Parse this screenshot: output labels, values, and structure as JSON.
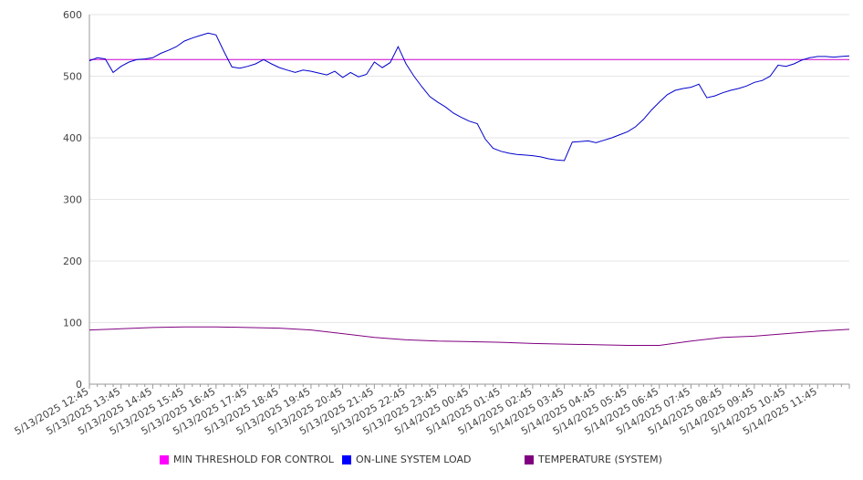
{
  "chart_data": {
    "type": "line",
    "ylim": [
      0,
      600
    ],
    "yticks": [
      0,
      100,
      200,
      300,
      400,
      500,
      600
    ],
    "xlabels": [
      "5/13/2025 12:45",
      "5/13/2025 13:45",
      "5/13/2025 14:45",
      "5/13/2025 15:45",
      "5/13/2025 16:45",
      "5/13/2025 17:45",
      "5/13/2025 18:45",
      "5/13/2025 19:45",
      "5/13/2025 20:45",
      "5/13/2025 21:45",
      "5/13/2025 22:45",
      "5/13/2025 23:45",
      "5/14/2025 00:45",
      "5/14/2025 01:45",
      "5/14/2025 02:45",
      "5/14/2025 03:45",
      "5/14/2025 04:45",
      "5/14/2025 05:45",
      "5/14/2025 06:45",
      "5/14/2025 07:45",
      "5/14/2025 08:45",
      "5/14/2025 09:45",
      "5/14/2025 10:45",
      "5/14/2025 11:45"
    ],
    "grid": true,
    "legend_position": "bottom",
    "series": [
      {
        "name": "MIN THRESHOLD FOR CONTROL",
        "color": "#cc00cc",
        "x": [
          "5/13/2025 12:45",
          "5/14/2025 12:45"
        ],
        "y": [
          527,
          527
        ]
      },
      {
        "name": "ON-LINE SYSTEM LOAD",
        "color": "#0000cc",
        "x": [
          "5/13/2025 12:45",
          "5/13/2025 13:00",
          "5/13/2025 13:15",
          "5/13/2025 13:30",
          "5/13/2025 13:45",
          "5/13/2025 14:00",
          "5/13/2025 14:15",
          "5/13/2025 14:30",
          "5/13/2025 14:45",
          "5/13/2025 15:00",
          "5/13/2025 15:15",
          "5/13/2025 15:30",
          "5/13/2025 15:45",
          "5/13/2025 16:00",
          "5/13/2025 16:15",
          "5/13/2025 16:30",
          "5/13/2025 16:45",
          "5/13/2025 17:00",
          "5/13/2025 17:15",
          "5/13/2025 17:30",
          "5/13/2025 17:45",
          "5/13/2025 18:00",
          "5/13/2025 18:15",
          "5/13/2025 18:30",
          "5/13/2025 18:45",
          "5/13/2025 19:00",
          "5/13/2025 19:15",
          "5/13/2025 19:30",
          "5/13/2025 19:45",
          "5/13/2025 20:00",
          "5/13/2025 20:15",
          "5/13/2025 20:30",
          "5/13/2025 20:45",
          "5/13/2025 21:00",
          "5/13/2025 21:15",
          "5/13/2025 21:30",
          "5/13/2025 21:45",
          "5/13/2025 22:00",
          "5/13/2025 22:15",
          "5/13/2025 22:30",
          "5/13/2025 22:45",
          "5/13/2025 23:00",
          "5/13/2025 23:15",
          "5/13/2025 23:30",
          "5/13/2025 23:45",
          "5/14/2025 00:00",
          "5/14/2025 00:15",
          "5/14/2025 00:30",
          "5/14/2025 00:45",
          "5/14/2025 01:00",
          "5/14/2025 01:15",
          "5/14/2025 01:30",
          "5/14/2025 01:45",
          "5/14/2025 02:00",
          "5/14/2025 02:15",
          "5/14/2025 02:30",
          "5/14/2025 02:45",
          "5/14/2025 03:00",
          "5/14/2025 03:15",
          "5/14/2025 03:30",
          "5/14/2025 03:45",
          "5/14/2025 04:00",
          "5/14/2025 04:15",
          "5/14/2025 04:30",
          "5/14/2025 04:45",
          "5/14/2025 05:00",
          "5/14/2025 05:15",
          "5/14/2025 05:30",
          "5/14/2025 05:45",
          "5/14/2025 06:00",
          "5/14/2025 06:15",
          "5/14/2025 06:30",
          "5/14/2025 06:45",
          "5/14/2025 07:00",
          "5/14/2025 07:15",
          "5/14/2025 07:30",
          "5/14/2025 07:45",
          "5/14/2025 08:00",
          "5/14/2025 08:15",
          "5/14/2025 08:30",
          "5/14/2025 08:45",
          "5/14/2025 09:00",
          "5/14/2025 09:15",
          "5/14/2025 09:30",
          "5/14/2025 09:45",
          "5/14/2025 10:00",
          "5/14/2025 10:15",
          "5/14/2025 10:30",
          "5/14/2025 10:45",
          "5/14/2025 11:00",
          "5/14/2025 11:15",
          "5/14/2025 11:30",
          "5/14/2025 11:45",
          "5/14/2025 12:00",
          "5/14/2025 12:15",
          "5/14/2025 12:30",
          "5/14/2025 12:45"
        ],
        "y": [
          525,
          530,
          528,
          506,
          516,
          523,
          527,
          528,
          530,
          537,
          542,
          548,
          557,
          562,
          566,
          570,
          567,
          540,
          515,
          513,
          516,
          520,
          527,
          520,
          514,
          510,
          506,
          510,
          508,
          505,
          502,
          508,
          498,
          506,
          499,
          503,
          523,
          514,
          522,
          548,
          520,
          500,
          483,
          467,
          458,
          450,
          440,
          433,
          427,
          423,
          398,
          383,
          378,
          375,
          373,
          372,
          371,
          369,
          366,
          364,
          363,
          393,
          394,
          395,
          392,
          396,
          400,
          405,
          410,
          418,
          430,
          445,
          458,
          470,
          477,
          480,
          482,
          487,
          465,
          468,
          473,
          477,
          480,
          484,
          490,
          493,
          500,
          518,
          516,
          520,
          526,
          530,
          532,
          532,
          531,
          532,
          533
        ]
      },
      {
        "name": "TEMPERATURE (SYSTEM)",
        "color": "#800080",
        "x": [
          "5/13/2025 12:45",
          "5/13/2025 13:45",
          "5/13/2025 14:45",
          "5/13/2025 15:45",
          "5/13/2025 16:45",
          "5/13/2025 17:45",
          "5/13/2025 18:45",
          "5/13/2025 19:45",
          "5/13/2025 20:45",
          "5/13/2025 21:45",
          "5/13/2025 22:45",
          "5/13/2025 23:45",
          "5/14/2025 00:45",
          "5/14/2025 01:45",
          "5/14/2025 02:45",
          "5/14/2025 03:45",
          "5/14/2025 04:45",
          "5/14/2025 05:45",
          "5/14/2025 06:45",
          "5/14/2025 07:45",
          "5/14/2025 08:45",
          "5/14/2025 09:45",
          "5/14/2025 10:45",
          "5/14/2025 11:45",
          "5/14/2025 12:45"
        ],
        "y": [
          88,
          90,
          92,
          93,
          93,
          92,
          91,
          88,
          82,
          76,
          72,
          70,
          69,
          68,
          66,
          65,
          64,
          63,
          63,
          70,
          76,
          78,
          82,
          86,
          89
        ]
      }
    ],
    "legend": [
      {
        "label": "MIN THRESHOLD FOR CONTROL",
        "color": "#ff00ff"
      },
      {
        "label": "ON-LINE SYSTEM LOAD",
        "color": "#0000ff"
      },
      {
        "label": "TEMPERATURE (SYSTEM)",
        "color": "#800080"
      }
    ]
  }
}
